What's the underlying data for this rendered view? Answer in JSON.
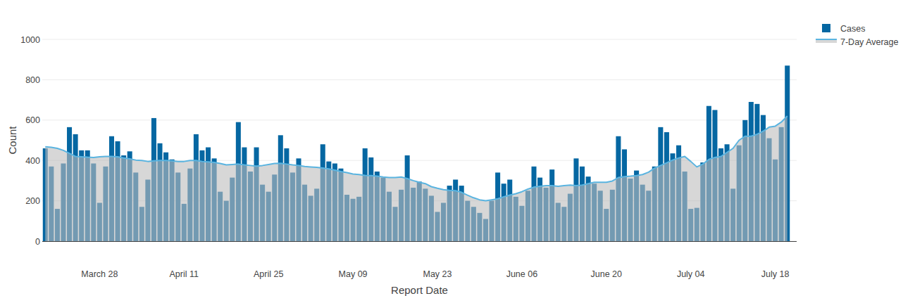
{
  "chart_data": {
    "type": "bar",
    "x_label": "Report Date",
    "y_label": "Count",
    "categories": [
      null,
      null,
      null,
      null,
      null,
      null,
      null,
      null,
      null,
      "March 28",
      null,
      null,
      null,
      null,
      null,
      null,
      null,
      null,
      null,
      null,
      null,
      null,
      null,
      "April 11",
      null,
      null,
      null,
      null,
      null,
      null,
      null,
      null,
      null,
      null,
      null,
      null,
      null,
      "April 25",
      null,
      null,
      null,
      null,
      null,
      null,
      null,
      null,
      null,
      null,
      null,
      null,
      null,
      "May 09",
      null,
      null,
      null,
      null,
      null,
      null,
      null,
      null,
      null,
      null,
      null,
      null,
      null,
      "May 23",
      null,
      null,
      null,
      null,
      null,
      null,
      null,
      null,
      null,
      null,
      null,
      null,
      null,
      "June 06",
      null,
      null,
      null,
      null,
      null,
      null,
      null,
      null,
      null,
      null,
      null,
      null,
      null,
      "June 20",
      null,
      null,
      null,
      null,
      null,
      null,
      null,
      null,
      null,
      null,
      null,
      null,
      null,
      "July 04",
      null,
      null,
      null,
      null,
      null,
      null,
      null,
      null,
      null,
      null,
      null,
      null,
      null,
      "July 18",
      null,
      null
    ],
    "series": [
      {
        "name": "Cases",
        "type": "bar",
        "color": "#0567a2",
        "values": [
          460,
          370,
          160,
          385,
          565,
          530,
          450,
          450,
          385,
          190,
          370,
          520,
          495,
          425,
          445,
          340,
          170,
          305,
          610,
          485,
          440,
          405,
          340,
          185,
          360,
          530,
          450,
          465,
          410,
          245,
          200,
          315,
          590,
          465,
          345,
          465,
          280,
          245,
          330,
          525,
          460,
          340,
          410,
          280,
          225,
          260,
          480,
          395,
          385,
          360,
          230,
          210,
          220,
          460,
          415,
          345,
          315,
          245,
          170,
          255,
          425,
          265,
          295,
          260,
          225,
          145,
          190,
          275,
          305,
          275,
          200,
          170,
          140,
          110,
          200,
          340,
          285,
          305,
          220,
          175,
          250,
          370,
          315,
          265,
          355,
          190,
          170,
          235,
          410,
          370,
          320,
          285,
          250,
          160,
          255,
          520,
          455,
          310,
          350,
          280,
          250,
          370,
          565,
          540,
          435,
          475,
          345,
          160,
          165,
          390,
          670,
          650,
          460,
          480,
          260,
          475,
          600,
          690,
          680,
          625,
          510,
          405,
          565,
          870
        ]
      },
      {
        "name": "7-Day Average",
        "type": "area",
        "color": "#5ab4e0",
        "values": [
          468,
          465,
          460,
          450,
          435,
          420,
          418,
          416,
          415,
          418,
          420,
          420,
          418,
          412,
          408,
          402,
          400,
          395,
          398,
          400,
          400,
          398,
          395,
          395,
          400,
          400,
          395,
          393,
          390,
          385,
          378,
          380,
          382,
          378,
          375,
          372,
          375,
          380,
          385,
          386,
          382,
          378,
          375,
          370,
          368,
          366,
          362,
          358,
          352,
          345,
          340,
          333,
          330,
          326,
          325,
          322,
          318,
          315,
          315,
          318,
          310,
          300,
          292,
          285,
          270,
          262,
          255,
          252,
          250,
          242,
          228,
          215,
          205,
          200,
          205,
          210,
          220,
          228,
          235,
          245,
          258,
          268,
          272,
          275,
          275,
          272,
          275,
          278,
          275,
          278,
          285,
          292,
          292,
          292,
          298,
          315,
          320,
          322,
          325,
          330,
          342,
          362,
          375,
          388,
          402,
          412,
          420,
          395,
          368,
          382,
          405,
          415,
          420,
          440,
          460,
          500,
          520,
          520,
          530,
          545,
          565,
          570,
          590,
          620
        ]
      }
    ],
    "ylim": [
      0,
      1000
    ],
    "yticks": [
      0,
      200,
      400,
      600,
      800,
      1000
    ],
    "grid": true,
    "legend": "top-right"
  }
}
